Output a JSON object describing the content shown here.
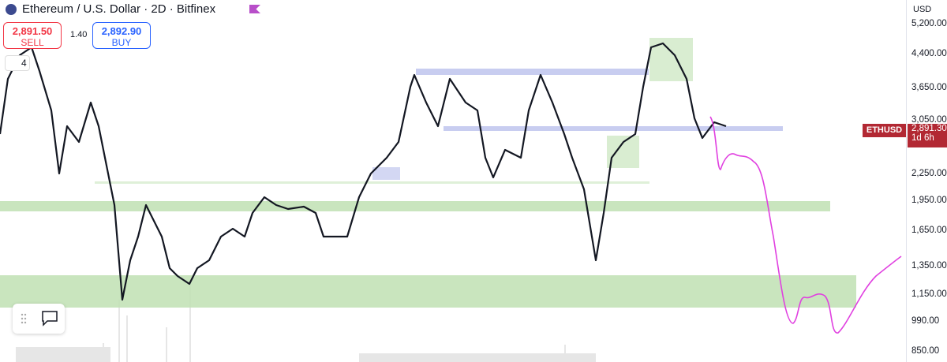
{
  "header": {
    "title": "Ethereum / U.S. Dollar · 2D · Bitfinex"
  },
  "trade": {
    "sell_price": "2,891.50",
    "sell_label": "SELL",
    "spread": "1.40",
    "buy_price": "2,892.90",
    "buy_label": "BUY"
  },
  "indicators": {
    "count": "4"
  },
  "price_axis": {
    "currency": "USD",
    "labels": [
      "5,200.00",
      "4,400.00",
      "3,650.00",
      "3,050.00",
      "2,250.00",
      "1,950.00",
      "1,650.00",
      "1,350.00",
      "1,150.00",
      "990.00",
      "850.00"
    ]
  },
  "price_tag": {
    "symbol": "ETHUSD",
    "price": "2,891.30",
    "countdown": "1d 6h"
  }
}
